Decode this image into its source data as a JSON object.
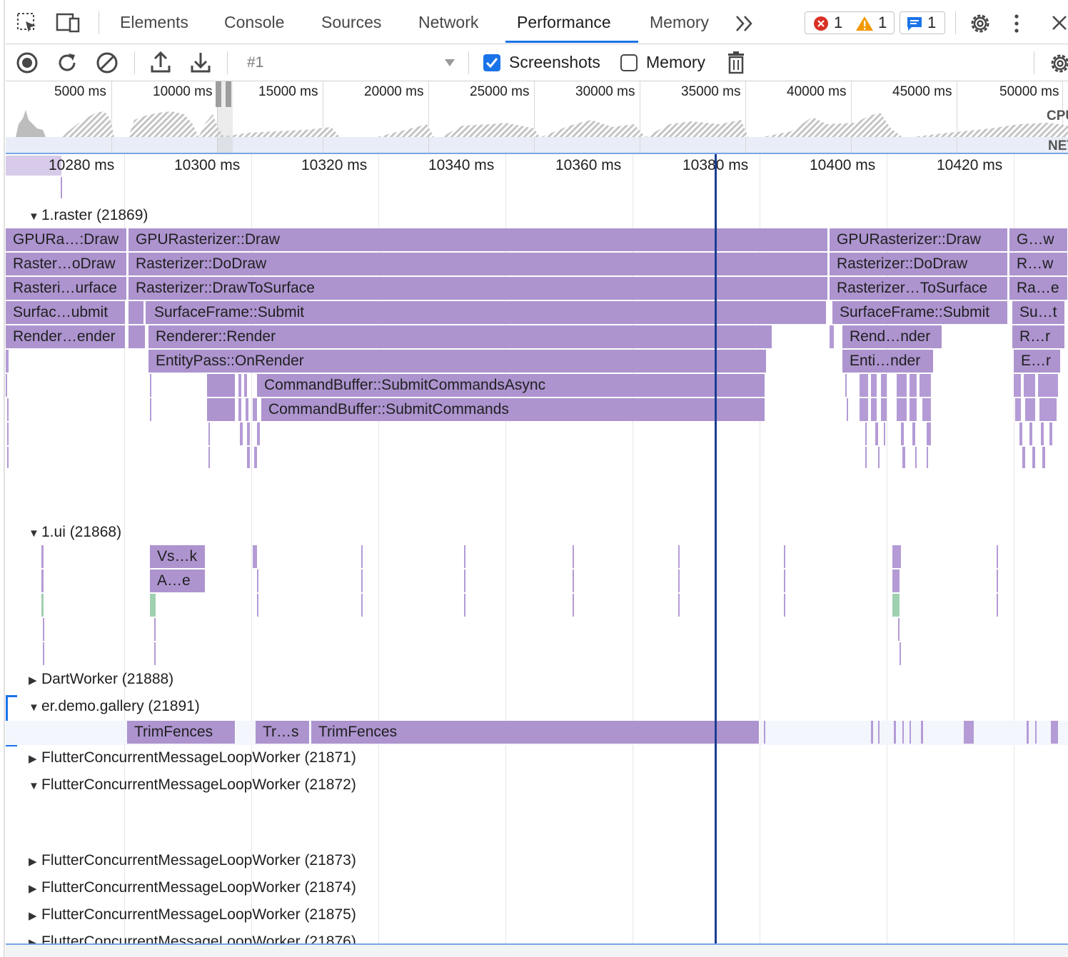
{
  "tabs": [
    {
      "label": "Elements"
    },
    {
      "label": "Console"
    },
    {
      "label": "Sources"
    },
    {
      "label": "Network"
    },
    {
      "label": "Performance"
    },
    {
      "label": "Memory"
    }
  ],
  "issues": {
    "errors": "1",
    "warnings": "1",
    "messages": "1"
  },
  "toolbar": {
    "recording": "#1",
    "screenshots_label": "Screenshots",
    "screenshots_checked": true,
    "memory_label": "Memory",
    "memory_checked": false
  },
  "overview": {
    "labels": [
      "5000 ms",
      "10000 ms",
      "15000 ms",
      "20000 ms",
      "25000 ms",
      "30000 ms",
      "35000 ms",
      "40000 ms",
      "45000 ms",
      "50000 ms"
    ],
    "cpu_label": "CPU",
    "net_label": "NET"
  },
  "ruler": {
    "labels": [
      "10280 ms",
      "10300 ms",
      "10320 ms",
      "10340 ms",
      "10360 ms",
      "10380 ms",
      "10400 ms",
      "10420 ms"
    ]
  },
  "tracks": {
    "raster": "1.raster (21869)",
    "ui": "1.ui (21868)",
    "dartworker": "DartWorker (21888)",
    "gallery": "er.demo.gallery (21891)",
    "worker71": "FlutterConcurrentMessageLoopWorker (21871)",
    "worker72": "FlutterConcurrentMessageLoopWorker (21872)",
    "worker73": "FlutterConcurrentMessageLoopWorker (21873)",
    "worker74": "FlutterConcurrentMessageLoopWorker (21874)",
    "worker75": "FlutterConcurrentMessageLoopWorker (21875)",
    "worker76": "FlutterConcurrentMessageLoopWorker (21876)"
  },
  "raster_bars": {
    "r1": [
      "GPURa…:Draw",
      "GPURasterizer::Draw",
      "GPURasterizer::Draw",
      "G…w"
    ],
    "r2": [
      "Raster…oDraw",
      "Rasterizer::DoDraw",
      "Rasterizer::DoDraw",
      "R…w"
    ],
    "r3": [
      "Rasteri…urface",
      "Rasterizer::DrawToSurface",
      "Rasterizer…ToSurface",
      "Ra…e"
    ],
    "r4": [
      "Surfac…ubmit",
      "SurfaceFrame::Submit",
      "SurfaceFrame::Submit",
      "Su…t"
    ],
    "r5": [
      "Render…ender",
      "Renderer::Render",
      "Rend…nder",
      "R…r"
    ],
    "r6": [
      "EntityPass::OnRender",
      "Enti…nder",
      "E…r"
    ],
    "r7": [
      "CommandBuffer::SubmitCommandsAsync"
    ],
    "r8": [
      "CommandBuffer::SubmitCommands"
    ]
  },
  "ui_bars": {
    "b1": "Vs…k",
    "b2": "A…e"
  },
  "gallery_bars": {
    "b1": "TrimFences",
    "b2": "Tr…s",
    "b3": "TrimFences"
  }
}
